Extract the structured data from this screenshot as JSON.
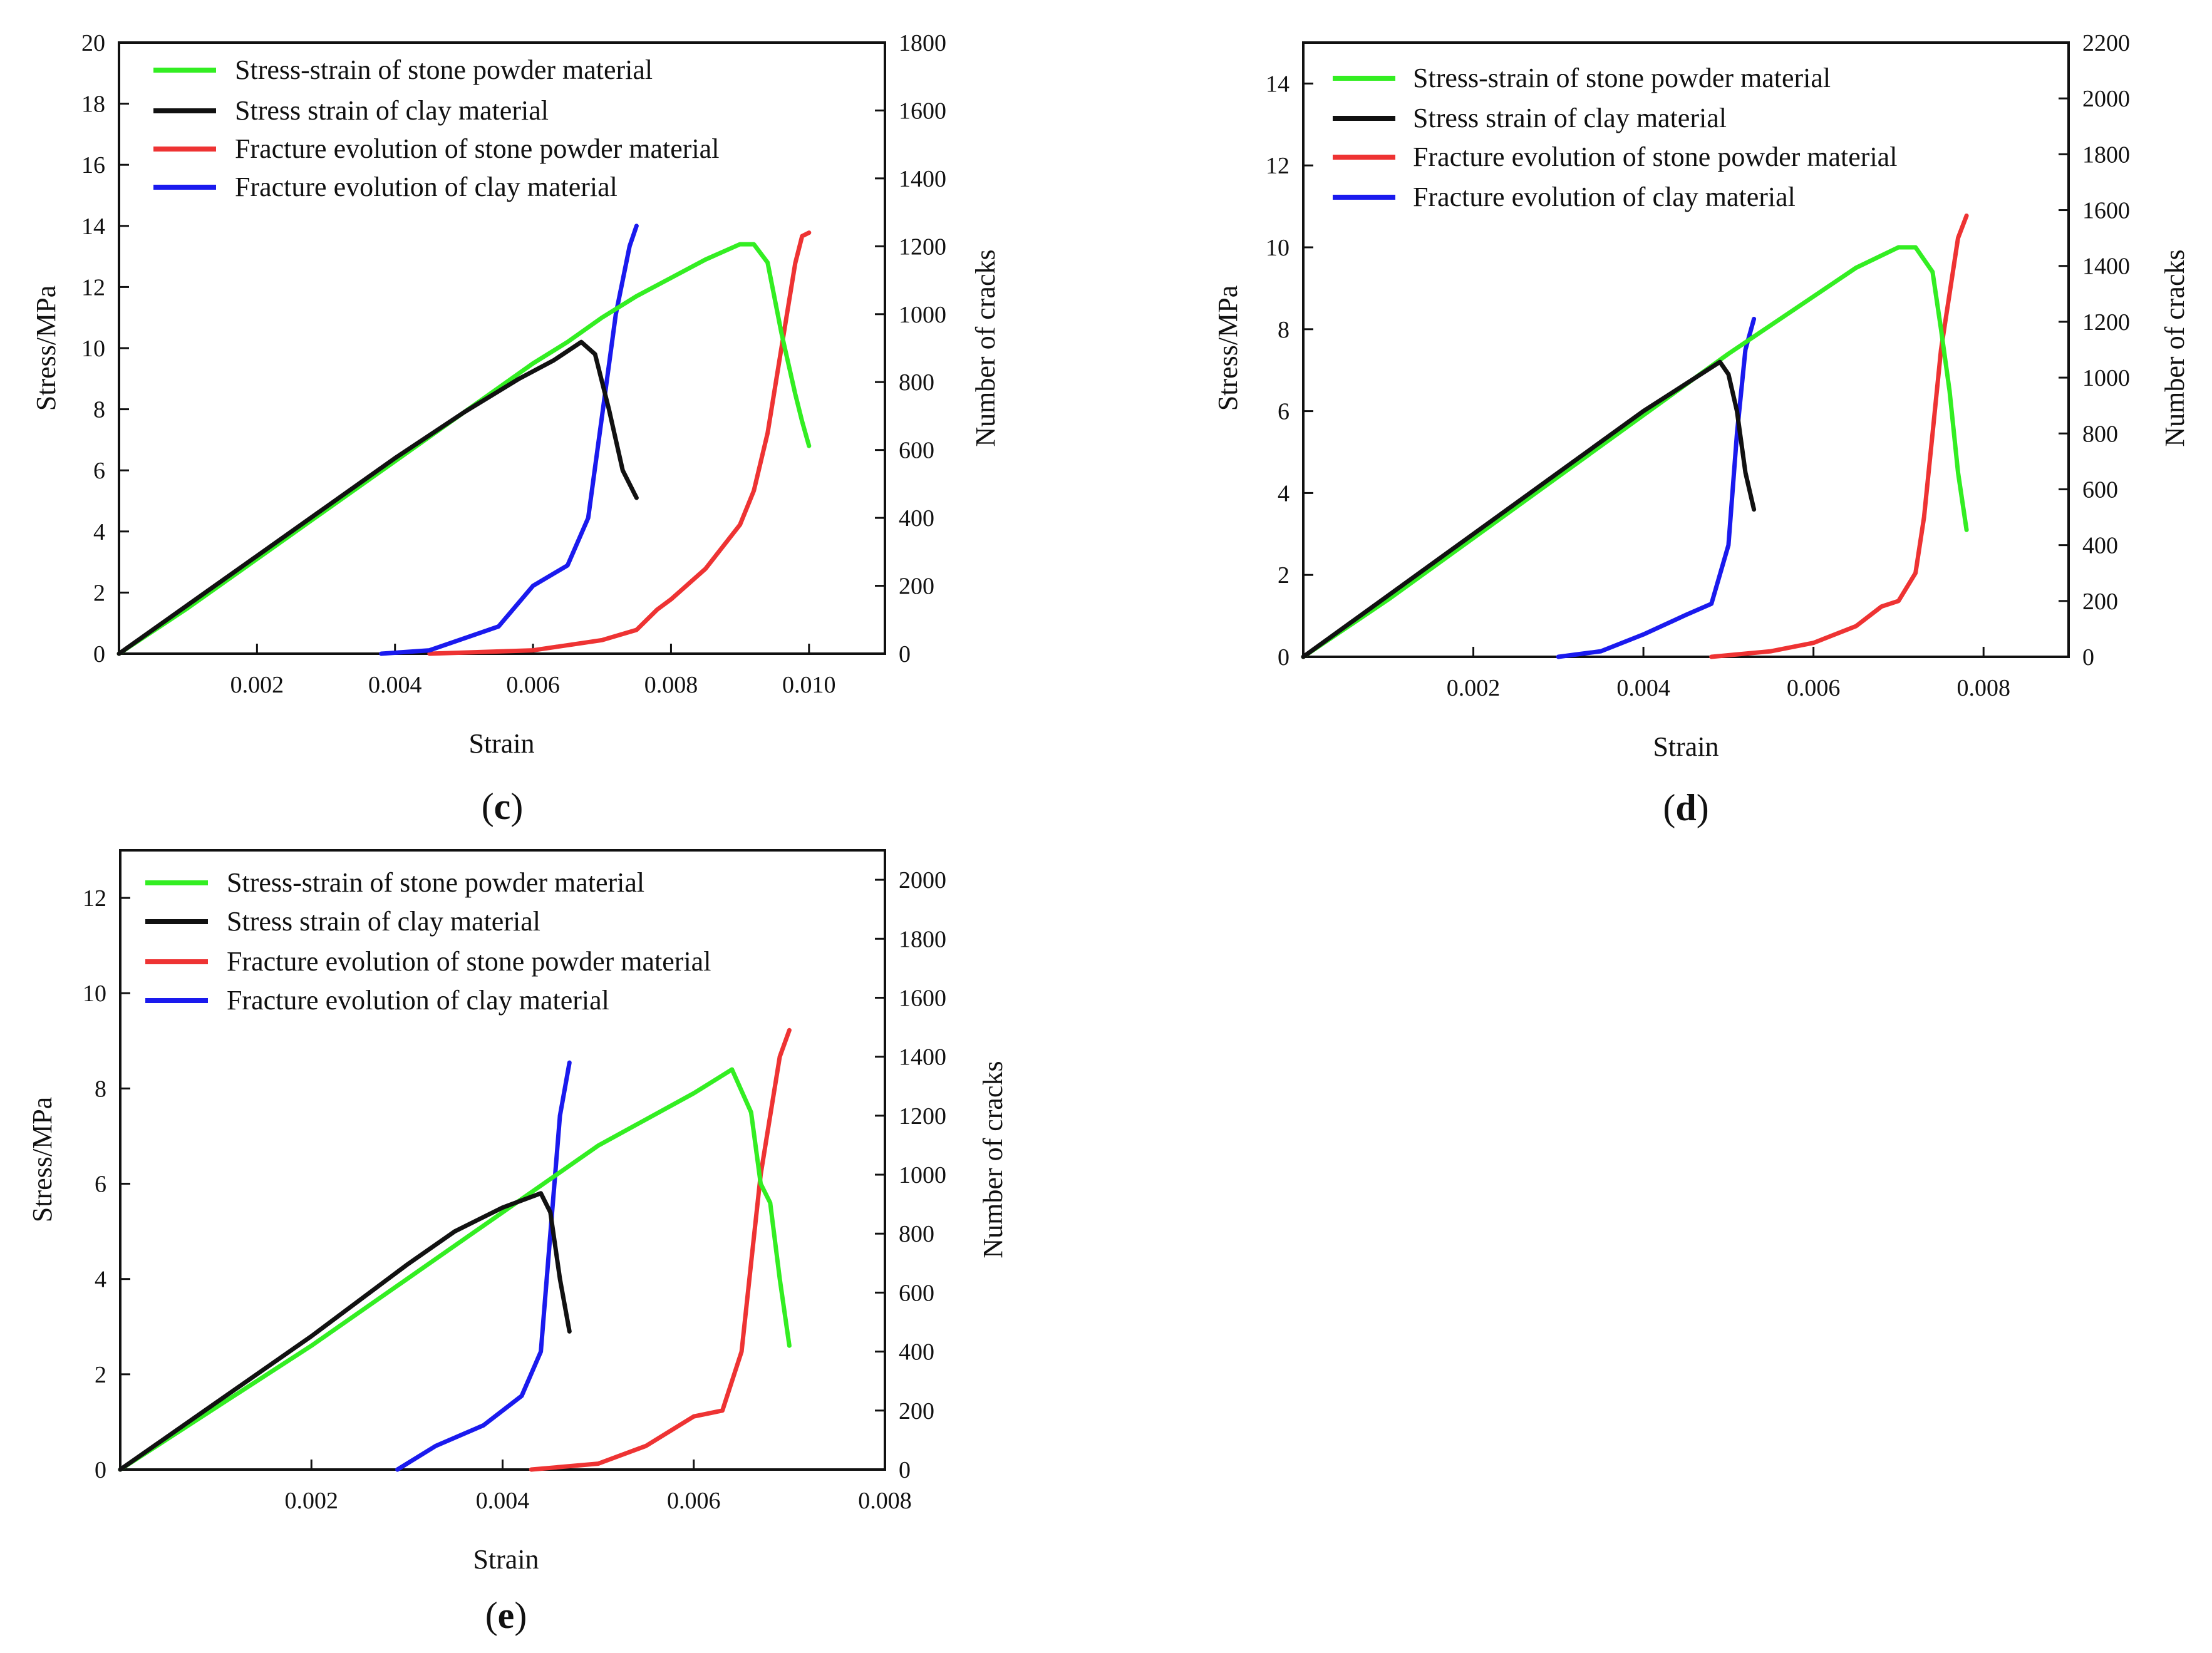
{
  "figure": {
    "panels": [
      "c",
      "d",
      "e"
    ]
  },
  "legend_entries": [
    "Stress-strain of stone powder material",
    "Stress strain of clay material",
    "Fracture evolution of stone powder material",
    "Fracture evolution of clay material"
  ],
  "series_colors": {
    "stone_stress": "#33ee22",
    "clay_stress": "#111111",
    "stone_cracks": "#ee3333",
    "clay_cracks": "#1a1aee"
  },
  "chart_data": [
    {
      "id": "c",
      "type": "line",
      "panel_label": "(c)",
      "label_letter": "c",
      "xlabel": "Strain",
      "ylabel": "Stress/MPa",
      "y2label": "Number of cracks",
      "xlim": [
        0,
        0.0111
      ],
      "ylim": [
        0,
        20
      ],
      "y2lim": [
        0,
        1800
      ],
      "xticks": [
        0.002,
        0.004,
        0.006,
        0.008,
        0.01
      ],
      "xtick_labels": [
        "0.002",
        "0.004",
        "0.006",
        "0.008",
        "0.010"
      ],
      "yticks": [
        0,
        2,
        4,
        6,
        8,
        10,
        12,
        14,
        16,
        18,
        20
      ],
      "ytick_labels": [
        "0",
        "2",
        "4",
        "6",
        "8",
        "10",
        "12",
        "14",
        "16",
        "18",
        "20"
      ],
      "y2ticks": [
        0,
        200,
        400,
        600,
        800,
        1000,
        1200,
        1400,
        1600,
        1800
      ],
      "y2tick_labels": [
        "0",
        "200",
        "400",
        "600",
        "800",
        "1000",
        "1200",
        "1400",
        "1600",
        "1800"
      ],
      "legend_entries": [
        "Stress-strain of stone powder material",
        "Stress strain of clay material",
        "Fracture evolution of stone powder material",
        "Fracture evolution of clay material"
      ],
      "series": [
        {
          "name": "Stress-strain of stone powder material",
          "axis": "left",
          "color_key": "stone_stress",
          "x": [
            0,
            0.001,
            0.002,
            0.003,
            0.004,
            0.005,
            0.006,
            0.0065,
            0.007,
            0.0075,
            0.008,
            0.0085,
            0.009,
            0.0092,
            0.0094,
            0.0096,
            0.0098,
            0.0099,
            0.01
          ],
          "y": [
            0,
            1.5,
            3.1,
            4.7,
            6.3,
            7.9,
            9.5,
            10.2,
            11.0,
            11.7,
            12.3,
            12.9,
            13.4,
            13.4,
            12.8,
            10.5,
            8.5,
            7.6,
            6.8
          ]
        },
        {
          "name": "Stress strain of clay material",
          "axis": "left",
          "color_key": "clay_stress",
          "x": [
            0,
            0.001,
            0.002,
            0.003,
            0.004,
            0.005,
            0.0058,
            0.0063,
            0.0067,
            0.0069,
            0.0071,
            0.0073,
            0.0075
          ],
          "y": [
            0,
            1.6,
            3.2,
            4.8,
            6.4,
            7.9,
            9.0,
            9.6,
            10.2,
            9.8,
            8.0,
            6.0,
            5.1
          ]
        },
        {
          "name": "Fracture evolution of stone powder material",
          "axis": "right",
          "color_key": "stone_cracks",
          "x": [
            0.0045,
            0.006,
            0.007,
            0.0075,
            0.0078,
            0.008,
            0.0085,
            0.009,
            0.0092,
            0.0094,
            0.0096,
            0.0098,
            0.0099,
            0.01
          ],
          "y": [
            0,
            10,
            40,
            70,
            130,
            160,
            250,
            380,
            480,
            650,
            900,
            1150,
            1230,
            1240
          ]
        },
        {
          "name": "Fracture evolution of clay material",
          "axis": "right",
          "color_key": "clay_cracks",
          "x": [
            0.0038,
            0.0045,
            0.0055,
            0.006,
            0.0065,
            0.0068,
            0.007,
            0.0072,
            0.0074,
            0.0075
          ],
          "y": [
            0,
            10,
            80,
            200,
            260,
            400,
            700,
            1000,
            1200,
            1260
          ]
        }
      ]
    },
    {
      "id": "d",
      "type": "line",
      "panel_label": "(d)",
      "label_letter": "d",
      "xlabel": "Strain",
      "ylabel": "Stress/MPa",
      "y2label": "Number of cracks",
      "xlim": [
        0,
        0.009
      ],
      "ylim": [
        0,
        15
      ],
      "y2lim": [
        0,
        2200
      ],
      "xticks": [
        0.002,
        0.004,
        0.006,
        0.008
      ],
      "xtick_labels": [
        "0.002",
        "0.004",
        "0.006",
        "0.008"
      ],
      "yticks": [
        0,
        2,
        4,
        6,
        8,
        10,
        12,
        14
      ],
      "ytick_labels": [
        "0",
        "2",
        "4",
        "6",
        "8",
        "10",
        "12",
        "14"
      ],
      "y2ticks": [
        0,
        200,
        400,
        600,
        800,
        1000,
        1200,
        1400,
        1600,
        1800,
        2000,
        2200
      ],
      "y2tick_labels": [
        "0",
        "200",
        "400",
        "600",
        "800",
        "1000",
        "1200",
        "1400",
        "1600",
        "1800",
        "2000",
        "2200"
      ],
      "legend_entries": [
        "Stress-strain of stone powder material",
        "Stress strain of clay material",
        "Fracture evolution of stone powder material",
        "Fracture evolution of clay material"
      ],
      "series": [
        {
          "name": "Stress-strain of stone powder material",
          "axis": "left",
          "color_key": "stone_stress",
          "x": [
            0,
            0.001,
            0.002,
            0.003,
            0.004,
            0.005,
            0.006,
            0.0065,
            0.007,
            0.0072,
            0.0074,
            0.0075,
            0.0076,
            0.0077,
            0.0078
          ],
          "y": [
            0,
            1.4,
            2.9,
            4.4,
            5.9,
            7.4,
            8.8,
            9.5,
            10.0,
            10.0,
            9.4,
            8.0,
            6.5,
            4.5,
            3.1
          ]
        },
        {
          "name": "Stress strain of clay material",
          "axis": "left",
          "color_key": "clay_stress",
          "x": [
            0,
            0.001,
            0.002,
            0.003,
            0.004,
            0.0049,
            0.005,
            0.0051,
            0.0052,
            0.0053
          ],
          "y": [
            0,
            1.5,
            3.0,
            4.5,
            6.0,
            7.2,
            6.9,
            6.0,
            4.5,
            3.6
          ]
        },
        {
          "name": "Fracture evolution of stone powder material",
          "axis": "right",
          "color_key": "stone_cracks",
          "x": [
            0.0048,
            0.0055,
            0.006,
            0.0065,
            0.0068,
            0.007,
            0.0072,
            0.0073,
            0.0074,
            0.0075,
            0.0076,
            0.0077,
            0.0078
          ],
          "y": [
            0,
            20,
            50,
            110,
            180,
            200,
            300,
            500,
            800,
            1100,
            1300,
            1500,
            1580
          ]
        },
        {
          "name": "Fracture evolution of clay material",
          "axis": "right",
          "color_key": "clay_cracks",
          "x": [
            0.003,
            0.0035,
            0.004,
            0.0045,
            0.0048,
            0.005,
            0.0051,
            0.0052,
            0.0053
          ],
          "y": [
            0,
            20,
            80,
            150,
            190,
            400,
            800,
            1100,
            1210
          ]
        }
      ]
    },
    {
      "id": "e",
      "type": "line",
      "panel_label": "(e)",
      "label_letter": "e",
      "xlabel": "Strain",
      "ylabel": "Stress/MPa",
      "y2label": "Number of cracks",
      "xlim": [
        0,
        0.008
      ],
      "ylim": [
        0,
        13
      ],
      "y2lim": [
        0,
        2100
      ],
      "xticks": [
        0.002,
        0.004,
        0.006,
        0.008
      ],
      "xtick_labels": [
        "0.002",
        "0.004",
        "0.006",
        "0.008"
      ],
      "yticks": [
        0,
        2,
        4,
        6,
        8,
        10,
        12
      ],
      "ytick_labels": [
        "0",
        "2",
        "4",
        "6",
        "8",
        "10",
        "12"
      ],
      "y2ticks": [
        0,
        200,
        400,
        600,
        800,
        1000,
        1200,
        1400,
        1600,
        1800,
        2000
      ],
      "y2tick_labels": [
        "0",
        "200",
        "400",
        "600",
        "800",
        "1000",
        "1200",
        "1400",
        "1600",
        "1800",
        "2000"
      ],
      "legend_entries": [
        "Stress-strain of stone powder material",
        "Stress strain of clay material",
        "Fracture evolution of stone powder material",
        "Fracture evolution of clay material"
      ],
      "series": [
        {
          "name": "Stress-strain of stone powder material",
          "axis": "left",
          "color_key": "stone_stress",
          "x": [
            0,
            0.001,
            0.002,
            0.003,
            0.004,
            0.005,
            0.006,
            0.0064,
            0.0066,
            0.0067,
            0.0068,
            0.0069,
            0.007
          ],
          "y": [
            0,
            1.3,
            2.6,
            4.0,
            5.4,
            6.8,
            7.9,
            8.4,
            7.5,
            6.0,
            5.6,
            4.0,
            2.6
          ]
        },
        {
          "name": "Stress strain of clay material",
          "axis": "left",
          "color_key": "clay_stress",
          "x": [
            0,
            0.001,
            0.002,
            0.003,
            0.0035,
            0.004,
            0.0044,
            0.0045,
            0.0046,
            0.0047
          ],
          "y": [
            0,
            1.4,
            2.8,
            4.3,
            5.0,
            5.5,
            5.8,
            5.4,
            4.0,
            2.9
          ]
        },
        {
          "name": "Fracture evolution of stone powder material",
          "axis": "right",
          "color_key": "stone_cracks",
          "x": [
            0.0043,
            0.005,
            0.0055,
            0.006,
            0.0063,
            0.0065,
            0.0066,
            0.0067,
            0.0068,
            0.0069,
            0.007
          ],
          "y": [
            0,
            20,
            80,
            180,
            200,
            400,
            700,
            1000,
            1200,
            1400,
            1490
          ]
        },
        {
          "name": "Fracture evolution of clay material",
          "axis": "right",
          "color_key": "clay_cracks",
          "x": [
            0.0029,
            0.0033,
            0.0038,
            0.0042,
            0.0044,
            0.0045,
            0.0046,
            0.0047
          ],
          "y": [
            0,
            80,
            150,
            250,
            400,
            800,
            1200,
            1380
          ]
        }
      ]
    }
  ]
}
